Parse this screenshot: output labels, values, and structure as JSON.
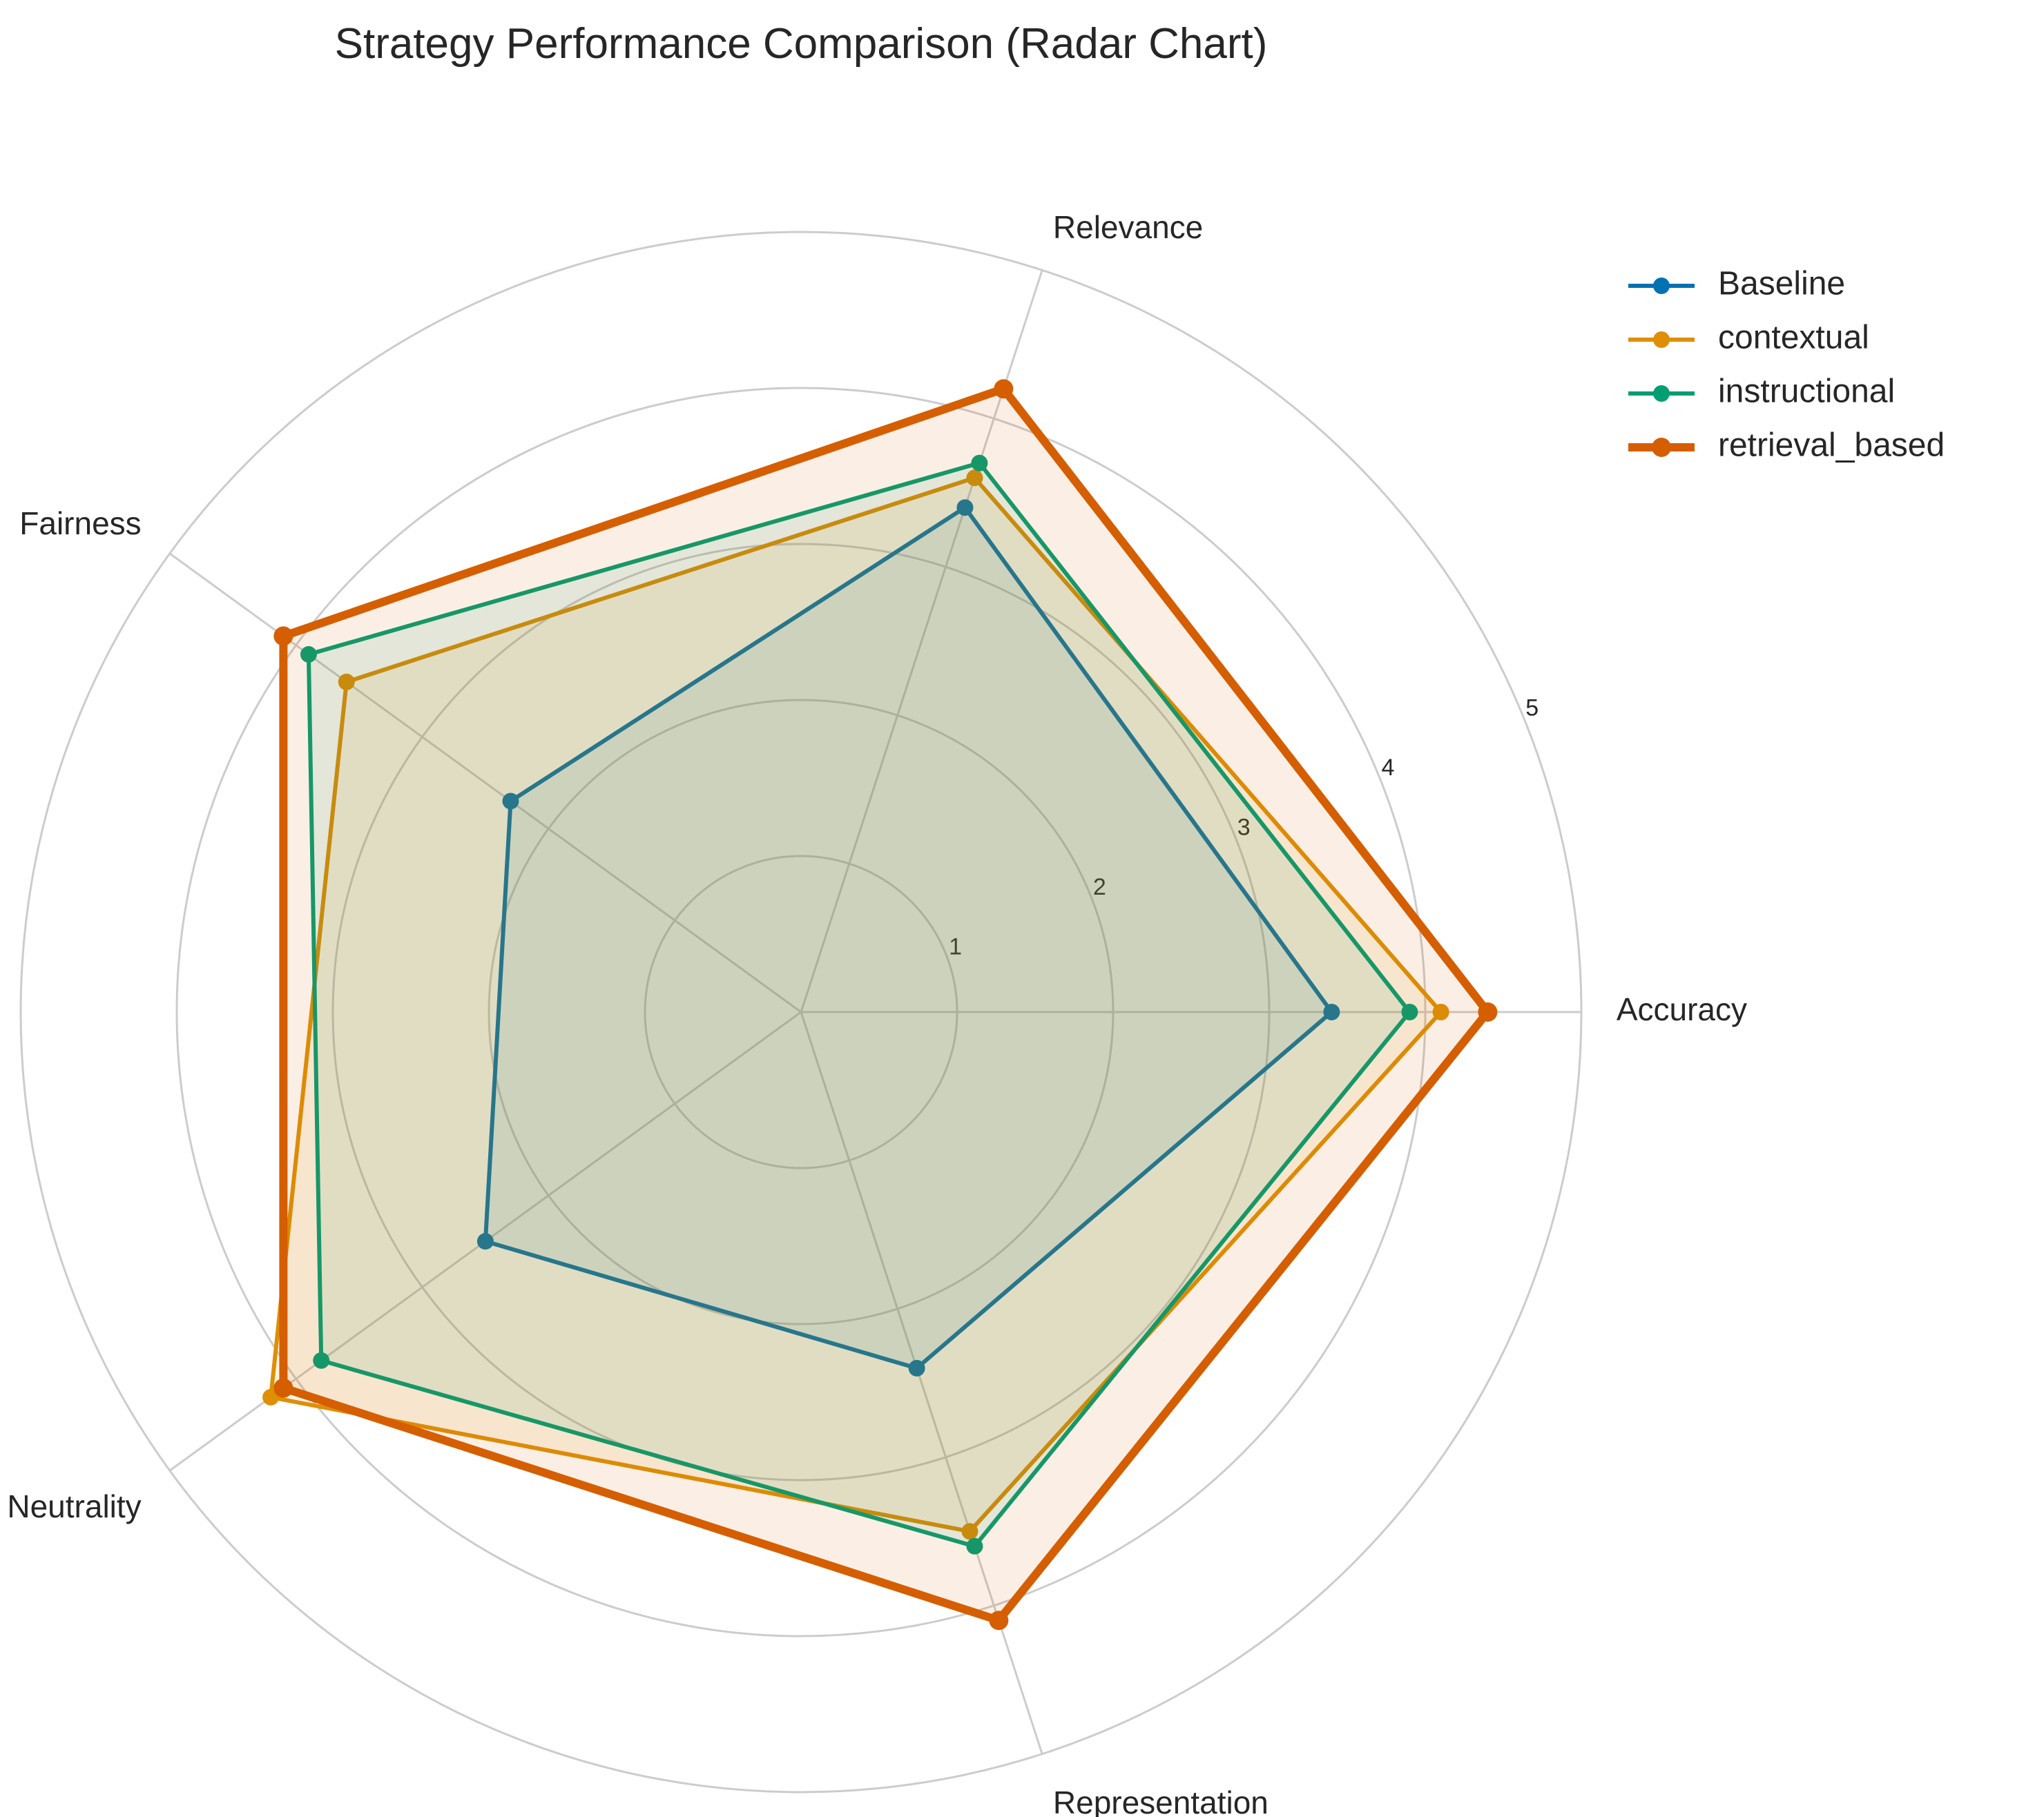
{
  "chart_data": {
    "type": "radar",
    "title": "Strategy Performance Comparison (Radar Chart)",
    "axes": [
      "Accuracy",
      "Relevance",
      "Fairness",
      "Neutrality",
      "Representation"
    ],
    "rlim": [
      0,
      5
    ],
    "rticks": [
      1,
      2,
      3,
      4,
      5
    ],
    "grid": true,
    "legend_position": "top-right",
    "series": [
      {
        "name": "Baseline",
        "color": "#0072b2",
        "values": [
          3.4,
          3.4,
          2.3,
          2.5,
          2.4
        ]
      },
      {
        "name": "contextual",
        "color": "#de8f05",
        "values": [
          4.1,
          3.6,
          3.6,
          4.2,
          3.5
        ]
      },
      {
        "name": "instructional",
        "color": "#029e73",
        "values": [
          3.9,
          3.7,
          3.9,
          3.8,
          3.6
        ]
      },
      {
        "name": "retrieval_based",
        "color": "#d55e00",
        "values": [
          4.4,
          4.2,
          4.1,
          4.1,
          4.1
        ]
      }
    ]
  }
}
